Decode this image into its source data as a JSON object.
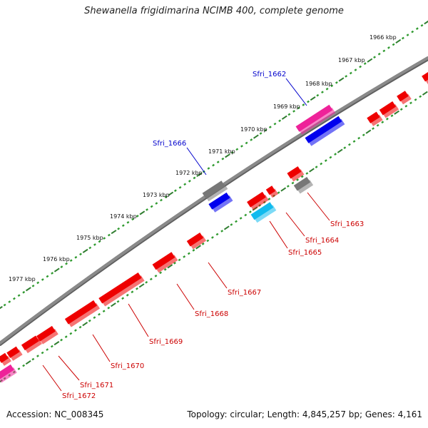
{
  "header": {
    "title": "Shewanella frigidimarina NCIMB 400, complete genome"
  },
  "footer": {
    "accession": "Accession: NC_008345",
    "topology": "Topology: circular; Length: 4,845,257 bp; Genes: 4,161"
  },
  "colors": {
    "backbone": "#8a8a8a",
    "tick_major": "#2f7d2f",
    "tick_minor": "#2f9a2f",
    "forward_label": "#0000cc",
    "reverse_label": "#cc0000",
    "gene_red": "#ee0000",
    "gene_blue": "#0000ee",
    "gene_grey": "#777777",
    "gene_magenta": "#ee2299",
    "gene_cyan": "#11bbee"
  },
  "kbp_labels": [
    "1966 kbp",
    "1967 kbp",
    "1968 kbp",
    "1969 kbp",
    "1970 kbp",
    "1971 kbp",
    "1972 kbp",
    "1973 kbp",
    "1974 kbp",
    "1975 kbp",
    "1976 kbp",
    "1977 kbp"
  ],
  "forward_genes": [
    {
      "label": "Sfri_1662",
      "color": "magenta",
      "labeled": true
    },
    {
      "label": "Sfri_1666",
      "color": "grey",
      "labeled": true
    }
  ],
  "inner_forward_genes": [
    {
      "color": "blue"
    },
    {
      "color": "blue"
    }
  ],
  "reverse_genes": [
    {
      "label": "Sfri_1663",
      "color": "grey"
    },
    {
      "label": "Sfri_1664",
      "color": "red"
    },
    {
      "label": "Sfri_1665",
      "color": "cyan"
    },
    {
      "label": "Sfri_1667",
      "color": "red"
    },
    {
      "label": "Sfri_1668",
      "color": "red"
    },
    {
      "label": "Sfri_1669",
      "color": "red"
    },
    {
      "label": "Sfri_1670",
      "color": "red"
    },
    {
      "label": "Sfri_1671",
      "color": "red"
    },
    {
      "label": "Sfri_1672",
      "color": "red"
    }
  ],
  "unlabeled_genes": [
    {
      "color": "red"
    },
    {
      "color": "red"
    },
    {
      "color": "red"
    },
    {
      "color": "red"
    },
    {
      "color": "red"
    },
    {
      "color": "red"
    },
    {
      "color": "red"
    },
    {
      "color": "magenta"
    }
  ]
}
